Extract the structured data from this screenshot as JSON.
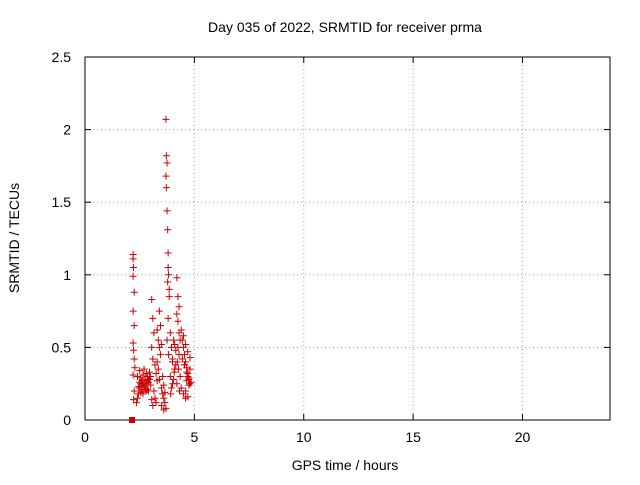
{
  "chart_data": {
    "type": "scatter",
    "title": "Day 035 of 2022, SRMTID for receiver prma",
    "xlabel": "GPS time / hours",
    "ylabel": "SRMTID / TECUs",
    "xlim": [
      0,
      24
    ],
    "ylim": [
      0,
      2.5
    ],
    "x_ticks": [
      0,
      5,
      10,
      15,
      20
    ],
    "x_tick_labels": [
      "0",
      "5",
      "10",
      "15",
      "20"
    ],
    "y_ticks": [
      0,
      0.5,
      1,
      1.5,
      2,
      2.5
    ],
    "y_tick_labels": [
      "0",
      "0.5",
      "1",
      "1.5",
      "2",
      "2.5"
    ],
    "grid": true,
    "legend": "none",
    "marker": "plus",
    "color": "#cc0000",
    "series": [
      {
        "x": [
          2.2,
          2.2,
          2.22,
          2.2,
          2.25,
          2.2,
          2.25,
          2.2,
          2.22,
          2.25,
          2.28,
          2.2,
          2.25,
          2.22,
          2.35,
          2.4,
          2.45,
          2.5,
          2.55,
          2.6,
          2.65,
          2.7,
          2.75,
          2.8,
          2.85,
          2.9,
          2.95,
          3.0,
          2.4,
          2.5,
          2.6,
          2.7,
          2.8,
          2.9,
          3.0,
          2.45,
          2.55,
          2.65,
          2.75,
          2.85,
          2.95,
          2.5,
          2.6,
          2.7,
          2.8,
          2.9,
          2.55,
          2.65,
          2.75,
          2.85,
          3.05,
          3.1,
          3.15,
          3.05,
          3.1,
          3.2,
          3.25,
          3.3,
          3.15,
          3.2,
          3.25,
          3.1,
          3.05,
          3.3,
          3.35,
          3.4,
          3.45,
          3.3,
          3.35,
          3.4,
          3.5,
          3.55,
          3.6,
          3.65,
          3.7,
          3.4,
          3.45,
          3.5,
          3.55,
          3.6,
          3.65,
          3.5,
          3.6,
          3.7,
          3.72,
          3.75,
          3.7,
          3.72,
          3.75,
          3.78,
          3.8,
          3.8,
          3.82,
          3.78,
          3.85,
          3.85,
          3.8,
          3.75,
          3.82,
          3.9,
          3.95,
          4.0,
          4.05,
          4.1,
          4.15,
          3.9,
          3.95,
          4.0,
          4.05,
          4.1,
          4.15,
          3.92,
          4.0,
          4.08,
          4.2,
          4.25,
          4.3,
          4.2,
          4.25,
          4.3,
          4.35,
          4.25,
          4.3,
          4.22,
          4.28,
          4.35,
          4.2,
          4.32,
          4.4,
          4.45,
          4.5,
          4.55,
          4.6,
          4.65,
          4.7,
          4.75,
          4.8,
          4.4,
          4.5,
          4.6,
          4.7,
          4.8,
          4.45,
          4.55,
          4.65,
          4.75,
          4.5,
          4.6,
          4.7,
          4.8,
          4.55,
          4.65,
          4.75,
          4.85,
          4.6,
          4.7
        ],
        "y": [
          1.14,
          1.11,
          1.05,
          0.99,
          0.88,
          0.75,
          0.65,
          0.53,
          0.48,
          0.42,
          0.36,
          0.31,
          0.2,
          0.14,
          0.12,
          0.15,
          0.18,
          0.22,
          0.25,
          0.2,
          0.18,
          0.22,
          0.28,
          0.25,
          0.3,
          0.2,
          0.28,
          0.24,
          0.3,
          0.34,
          0.27,
          0.35,
          0.32,
          0.26,
          0.3,
          0.23,
          0.19,
          0.31,
          0.21,
          0.27,
          0.33,
          0.26,
          0.22,
          0.24,
          0.2,
          0.28,
          0.29,
          0.25,
          0.23,
          0.21,
          0.83,
          0.7,
          0.6,
          0.5,
          0.42,
          0.38,
          0.32,
          0.27,
          0.2,
          0.15,
          0.12,
          0.1,
          0.14,
          0.62,
          0.55,
          0.5,
          0.45,
          0.4,
          0.35,
          0.28,
          0.22,
          0.18,
          0.15,
          0.12,
          0.08,
          0.75,
          0.65,
          0.52,
          0.3,
          0.24,
          0.19,
          0.1,
          0.07,
          2.07,
          1.82,
          1.77,
          1.68,
          1.6,
          1.44,
          1.31,
          1.15,
          1.05,
          1.0,
          0.95,
          0.9,
          0.85,
          0.7,
          0.55,
          0.45,
          0.6,
          0.5,
          0.42,
          0.55,
          0.35,
          0.48,
          0.3,
          0.22,
          0.4,
          0.28,
          0.52,
          0.38,
          0.18,
          0.25,
          0.33,
          0.98,
          0.85,
          0.78,
          0.73,
          0.68,
          0.6,
          0.55,
          0.5,
          0.45,
          0.4,
          0.35,
          0.3,
          0.25,
          0.2,
          0.62,
          0.55,
          0.5,
          0.45,
          0.4,
          0.36,
          0.32,
          0.28,
          0.25,
          0.22,
          0.18,
          0.15,
          0.3,
          0.35,
          0.42,
          0.38,
          0.27,
          0.24,
          0.58,
          0.52,
          0.47,
          0.43,
          0.38,
          0.33,
          0.29,
          0.26,
          0.2,
          0.16
        ]
      }
    ],
    "annotations": [
      {
        "x": 2.15,
        "y": 0.0,
        "marker": "square"
      }
    ]
  }
}
